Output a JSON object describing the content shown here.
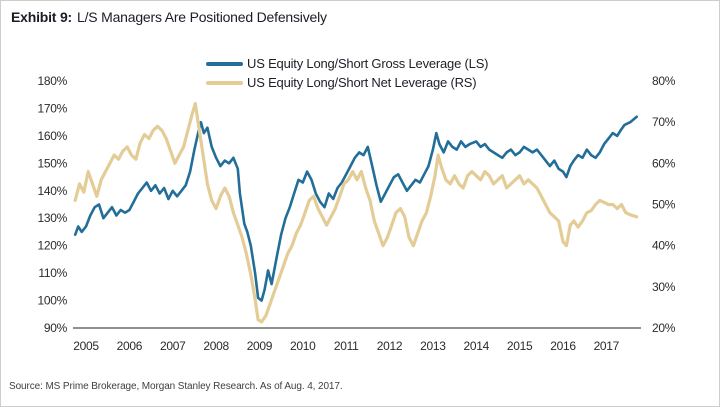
{
  "title": {
    "exhibit": "Exhibit 9:",
    "text": "L/S Managers Are Positioned Defensively"
  },
  "legend": [
    {
      "label": "US Equity Long/Short Gross Leverage (LS)",
      "color": "#226E99"
    },
    {
      "label": "US Equity Long/Short Net Leverage (RS)",
      "color": "#E3CC96"
    }
  ],
  "source": "Source: MS Prime Brokerage, Morgan Stanley Research. As of Aug. 4, 2017.",
  "chart_data": {
    "type": "line",
    "title": "Exhibit 9: L/S Managers Are Positioned Defensively",
    "grid": false,
    "legend_position": "top-center",
    "x_axis": {
      "range": [
        2004.7,
        2017.8
      ],
      "ticks": [
        "2005",
        "2006",
        "2007",
        "2008",
        "2009",
        "2010",
        "2011",
        "2012",
        "2013",
        "2014",
        "2015",
        "2016",
        "2017"
      ]
    },
    "left_axis": {
      "unit": "%",
      "range": [
        90,
        180
      ],
      "ticks": [
        "180%",
        "170%",
        "160%",
        "150%",
        "140%",
        "130%",
        "120%",
        "110%",
        "100%",
        "90%"
      ]
    },
    "right_axis": {
      "unit": "%",
      "range": [
        20,
        80
      ],
      "ticks": [
        "80%",
        "70%",
        "60%",
        "50%",
        "40%",
        "30%",
        "20%"
      ]
    },
    "series": [
      {
        "name": "US Equity Long/Short Gross Leverage (LS)",
        "axis": "left",
        "color": "#226E99",
        "points": [
          [
            2004.75,
            124
          ],
          [
            2004.82,
            127
          ],
          [
            2004.9,
            125
          ],
          [
            2005.0,
            127
          ],
          [
            2005.1,
            131
          ],
          [
            2005.2,
            134
          ],
          [
            2005.3,
            135
          ],
          [
            2005.4,
            130
          ],
          [
            2005.5,
            132
          ],
          [
            2005.6,
            134
          ],
          [
            2005.7,
            131
          ],
          [
            2005.8,
            133
          ],
          [
            2005.9,
            132
          ],
          [
            2006.0,
            133
          ],
          [
            2006.1,
            136
          ],
          [
            2006.2,
            139
          ],
          [
            2006.3,
            141
          ],
          [
            2006.4,
            143
          ],
          [
            2006.5,
            140
          ],
          [
            2006.6,
            142
          ],
          [
            2006.7,
            139
          ],
          [
            2006.8,
            141
          ],
          [
            2006.9,
            137
          ],
          [
            2007.0,
            140
          ],
          [
            2007.1,
            138
          ],
          [
            2007.2,
            140
          ],
          [
            2007.3,
            142
          ],
          [
            2007.4,
            147
          ],
          [
            2007.5,
            155
          ],
          [
            2007.6,
            162
          ],
          [
            2007.65,
            165
          ],
          [
            2007.72,
            161
          ],
          [
            2007.8,
            163
          ],
          [
            2007.9,
            156
          ],
          [
            2008.0,
            152
          ],
          [
            2008.1,
            149
          ],
          [
            2008.2,
            151
          ],
          [
            2008.3,
            150
          ],
          [
            2008.4,
            152
          ],
          [
            2008.5,
            148
          ],
          [
            2008.55,
            139
          ],
          [
            2008.65,
            128
          ],
          [
            2008.72,
            125
          ],
          [
            2008.8,
            120
          ],
          [
            2008.9,
            110
          ],
          [
            2008.97,
            101
          ],
          [
            2009.05,
            100
          ],
          [
            2009.12,
            104
          ],
          [
            2009.2,
            111
          ],
          [
            2009.28,
            106
          ],
          [
            2009.4,
            116
          ],
          [
            2009.5,
            124
          ],
          [
            2009.6,
            130
          ],
          [
            2009.7,
            134
          ],
          [
            2009.8,
            139
          ],
          [
            2009.9,
            144
          ],
          [
            2010.0,
            143
          ],
          [
            2010.1,
            147
          ],
          [
            2010.2,
            144
          ],
          [
            2010.3,
            139
          ],
          [
            2010.4,
            136
          ],
          [
            2010.5,
            134
          ],
          [
            2010.6,
            139
          ],
          [
            2010.7,
            137
          ],
          [
            2010.8,
            141
          ],
          [
            2010.9,
            143
          ],
          [
            2011.0,
            146
          ],
          [
            2011.1,
            149
          ],
          [
            2011.2,
            152
          ],
          [
            2011.3,
            154
          ],
          [
            2011.4,
            153
          ],
          [
            2011.5,
            156
          ],
          [
            2011.6,
            149
          ],
          [
            2011.7,
            142
          ],
          [
            2011.8,
            136
          ],
          [
            2011.9,
            139
          ],
          [
            2012.0,
            142
          ],
          [
            2012.1,
            145
          ],
          [
            2012.2,
            146
          ],
          [
            2012.3,
            143
          ],
          [
            2012.4,
            140
          ],
          [
            2012.5,
            142
          ],
          [
            2012.6,
            144
          ],
          [
            2012.7,
            143
          ],
          [
            2012.8,
            146
          ],
          [
            2012.9,
            149
          ],
          [
            2013.0,
            155
          ],
          [
            2013.08,
            161
          ],
          [
            2013.15,
            157
          ],
          [
            2013.25,
            154
          ],
          [
            2013.35,
            158
          ],
          [
            2013.45,
            156
          ],
          [
            2013.55,
            155
          ],
          [
            2013.65,
            158
          ],
          [
            2013.75,
            156
          ],
          [
            2013.85,
            157
          ],
          [
            2014.0,
            158
          ],
          [
            2014.1,
            156
          ],
          [
            2014.2,
            157
          ],
          [
            2014.3,
            155
          ],
          [
            2014.4,
            154
          ],
          [
            2014.5,
            153
          ],
          [
            2014.6,
            152
          ],
          [
            2014.7,
            154
          ],
          [
            2014.8,
            155
          ],
          [
            2014.9,
            153
          ],
          [
            2015.0,
            154
          ],
          [
            2015.1,
            156
          ],
          [
            2015.2,
            155
          ],
          [
            2015.3,
            154
          ],
          [
            2015.4,
            155
          ],
          [
            2015.5,
            153
          ],
          [
            2015.6,
            151
          ],
          [
            2015.7,
            149
          ],
          [
            2015.8,
            151
          ],
          [
            2015.9,
            148
          ],
          [
            2016.0,
            147
          ],
          [
            2016.08,
            145
          ],
          [
            2016.17,
            149
          ],
          [
            2016.25,
            151
          ],
          [
            2016.35,
            153
          ],
          [
            2016.45,
            152
          ],
          [
            2016.55,
            155
          ],
          [
            2016.65,
            153
          ],
          [
            2016.75,
            152
          ],
          [
            2016.85,
            154
          ],
          [
            2016.95,
            157
          ],
          [
            2017.05,
            159
          ],
          [
            2017.15,
            161
          ],
          [
            2017.25,
            160
          ],
          [
            2017.33,
            162
          ],
          [
            2017.42,
            164
          ],
          [
            2017.55,
            165
          ],
          [
            2017.7,
            167
          ]
        ]
      },
      {
        "name": "US Equity Long/Short Net Leverage (RS)",
        "axis": "right",
        "color": "#E3CC96",
        "points": [
          [
            2004.75,
            51
          ],
          [
            2004.85,
            55
          ],
          [
            2004.95,
            53
          ],
          [
            2005.05,
            58
          ],
          [
            2005.15,
            55
          ],
          [
            2005.25,
            52
          ],
          [
            2005.35,
            56
          ],
          [
            2005.45,
            58
          ],
          [
            2005.55,
            60
          ],
          [
            2005.65,
            62
          ],
          [
            2005.75,
            61
          ],
          [
            2005.85,
            63
          ],
          [
            2005.95,
            64
          ],
          [
            2006.05,
            62
          ],
          [
            2006.15,
            61
          ],
          [
            2006.25,
            65
          ],
          [
            2006.35,
            67
          ],
          [
            2006.45,
            66
          ],
          [
            2006.55,
            68
          ],
          [
            2006.65,
            69
          ],
          [
            2006.75,
            68
          ],
          [
            2006.85,
            66
          ],
          [
            2006.95,
            63
          ],
          [
            2007.05,
            60
          ],
          [
            2007.15,
            62
          ],
          [
            2007.25,
            64
          ],
          [
            2007.35,
            68
          ],
          [
            2007.45,
            72
          ],
          [
            2007.52,
            74.5
          ],
          [
            2007.6,
            69
          ],
          [
            2007.7,
            62
          ],
          [
            2007.8,
            55
          ],
          [
            2007.9,
            51
          ],
          [
            2008.0,
            49
          ],
          [
            2008.1,
            52
          ],
          [
            2008.2,
            54
          ],
          [
            2008.3,
            52
          ],
          [
            2008.4,
            48
          ],
          [
            2008.5,
            45
          ],
          [
            2008.6,
            42
          ],
          [
            2008.7,
            38
          ],
          [
            2008.8,
            33
          ],
          [
            2008.9,
            27
          ],
          [
            2008.97,
            22
          ],
          [
            2009.05,
            21.5
          ],
          [
            2009.15,
            23
          ],
          [
            2009.25,
            26
          ],
          [
            2009.35,
            29
          ],
          [
            2009.45,
            32
          ],
          [
            2009.55,
            35
          ],
          [
            2009.65,
            38
          ],
          [
            2009.75,
            40
          ],
          [
            2009.85,
            43
          ],
          [
            2009.95,
            45
          ],
          [
            2010.05,
            48
          ],
          [
            2010.15,
            51
          ],
          [
            2010.25,
            52
          ],
          [
            2010.35,
            49
          ],
          [
            2010.45,
            47
          ],
          [
            2010.55,
            45
          ],
          [
            2010.65,
            47
          ],
          [
            2010.75,
            49
          ],
          [
            2010.85,
            52
          ],
          [
            2010.95,
            55
          ],
          [
            2011.05,
            56
          ],
          [
            2011.15,
            58
          ],
          [
            2011.25,
            56
          ],
          [
            2011.35,
            58
          ],
          [
            2011.45,
            54
          ],
          [
            2011.55,
            51
          ],
          [
            2011.65,
            46
          ],
          [
            2011.75,
            43
          ],
          [
            2011.85,
            40
          ],
          [
            2011.95,
            42
          ],
          [
            2012.05,
            45
          ],
          [
            2012.15,
            48
          ],
          [
            2012.25,
            49
          ],
          [
            2012.35,
            47
          ],
          [
            2012.45,
            42
          ],
          [
            2012.55,
            40
          ],
          [
            2012.65,
            43
          ],
          [
            2012.75,
            46
          ],
          [
            2012.85,
            48
          ],
          [
            2012.95,
            52
          ],
          [
            2013.05,
            57
          ],
          [
            2013.12,
            62
          ],
          [
            2013.2,
            59
          ],
          [
            2013.3,
            56
          ],
          [
            2013.4,
            55
          ],
          [
            2013.5,
            57
          ],
          [
            2013.6,
            55
          ],
          [
            2013.7,
            54
          ],
          [
            2013.8,
            57
          ],
          [
            2013.9,
            58
          ],
          [
            2014.0,
            57
          ],
          [
            2014.1,
            56
          ],
          [
            2014.2,
            58
          ],
          [
            2014.3,
            57
          ],
          [
            2014.4,
            55
          ],
          [
            2014.5,
            56
          ],
          [
            2014.6,
            57
          ],
          [
            2014.7,
            54
          ],
          [
            2014.8,
            55
          ],
          [
            2014.9,
            56
          ],
          [
            2015.0,
            57
          ],
          [
            2015.1,
            55
          ],
          [
            2015.2,
            56
          ],
          [
            2015.3,
            55
          ],
          [
            2015.4,
            54
          ],
          [
            2015.5,
            52
          ],
          [
            2015.6,
            50
          ],
          [
            2015.7,
            48
          ],
          [
            2015.8,
            47
          ],
          [
            2015.9,
            46
          ],
          [
            2016.0,
            41
          ],
          [
            2016.08,
            40
          ],
          [
            2016.17,
            45
          ],
          [
            2016.25,
            46
          ],
          [
            2016.35,
            44.5
          ],
          [
            2016.45,
            46
          ],
          [
            2016.55,
            48
          ],
          [
            2016.65,
            48.5
          ],
          [
            2016.75,
            50
          ],
          [
            2016.85,
            51
          ],
          [
            2016.95,
            50.5
          ],
          [
            2017.05,
            50
          ],
          [
            2017.15,
            50
          ],
          [
            2017.25,
            49
          ],
          [
            2017.35,
            50
          ],
          [
            2017.45,
            48
          ],
          [
            2017.55,
            47.5
          ],
          [
            2017.7,
            47
          ]
        ]
      }
    ]
  }
}
